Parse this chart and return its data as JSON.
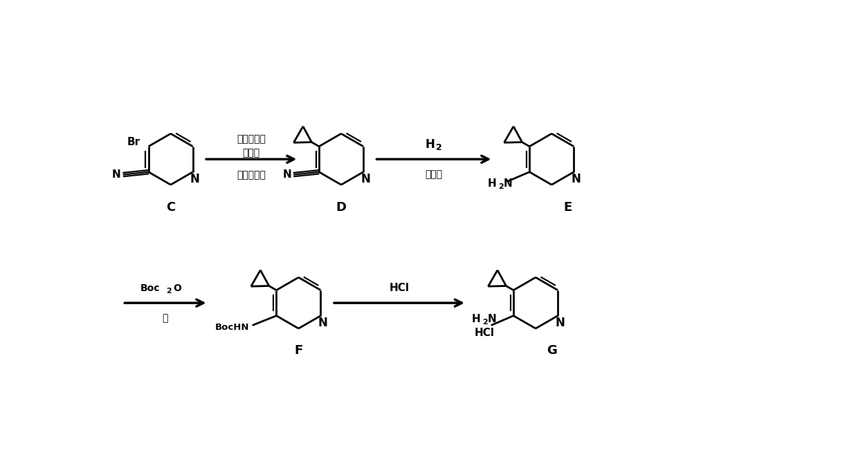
{
  "background_color": "#ffffff",
  "fig_width": 12.4,
  "fig_height": 6.74,
  "dpi": 100,
  "arrow1_label_line1": "环丙基硼酸",
  "arrow1_label_line2": "膦配体",
  "arrow1_label_bot": "碱，催化剂",
  "arrow2_label_top": "H2",
  "arrow2_label_bot": "催化剂",
  "arrow3_label_top": "Boc2O",
  "arrow3_label_bot": "碱",
  "arrow4_label_top": "HCl",
  "label_C": "C",
  "label_D": "D",
  "label_E": "E",
  "label_F": "F",
  "label_G": "G",
  "text_color": "#000000",
  "line_color": "#000000",
  "bond_lw": 2.0,
  "arrow_lw": 2.5
}
